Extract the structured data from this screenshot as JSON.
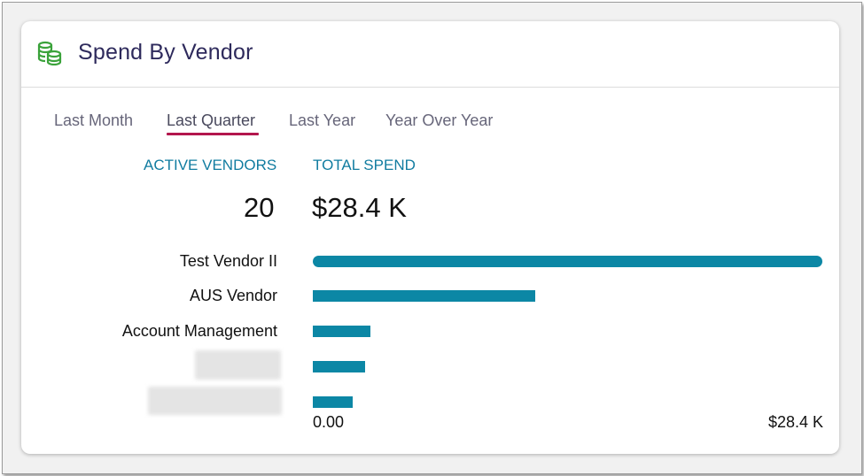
{
  "header": {
    "title": "Spend By Vendor",
    "icon": "coins-icon",
    "icon_color": "#3aa23a"
  },
  "tabs": [
    {
      "label": "Last Month",
      "active": false
    },
    {
      "label": "Last Quarter",
      "active": true
    },
    {
      "label": "Last Year",
      "active": false
    },
    {
      "label": "Year Over Year",
      "active": false
    }
  ],
  "accent_color": "#b3164d",
  "bar_color": "#0c87a5",
  "stats": {
    "active_vendors_label": "ACTIVE VENDORS",
    "active_vendors_value": "20",
    "total_spend_label": "TOTAL SPEND",
    "total_spend_value": "$28.4 K"
  },
  "chart_data": {
    "type": "bar",
    "orientation": "horizontal",
    "categories": [
      "Test Vendor II",
      "AUS Vendor",
      "Account Management",
      "",
      ""
    ],
    "values": [
      28.4,
      12.4,
      3.2,
      2.9,
      2.2
    ],
    "xlim": [
      0,
      28.4
    ],
    "axis_min_label": "0.00",
    "axis_max_label": "$28.4 K"
  }
}
